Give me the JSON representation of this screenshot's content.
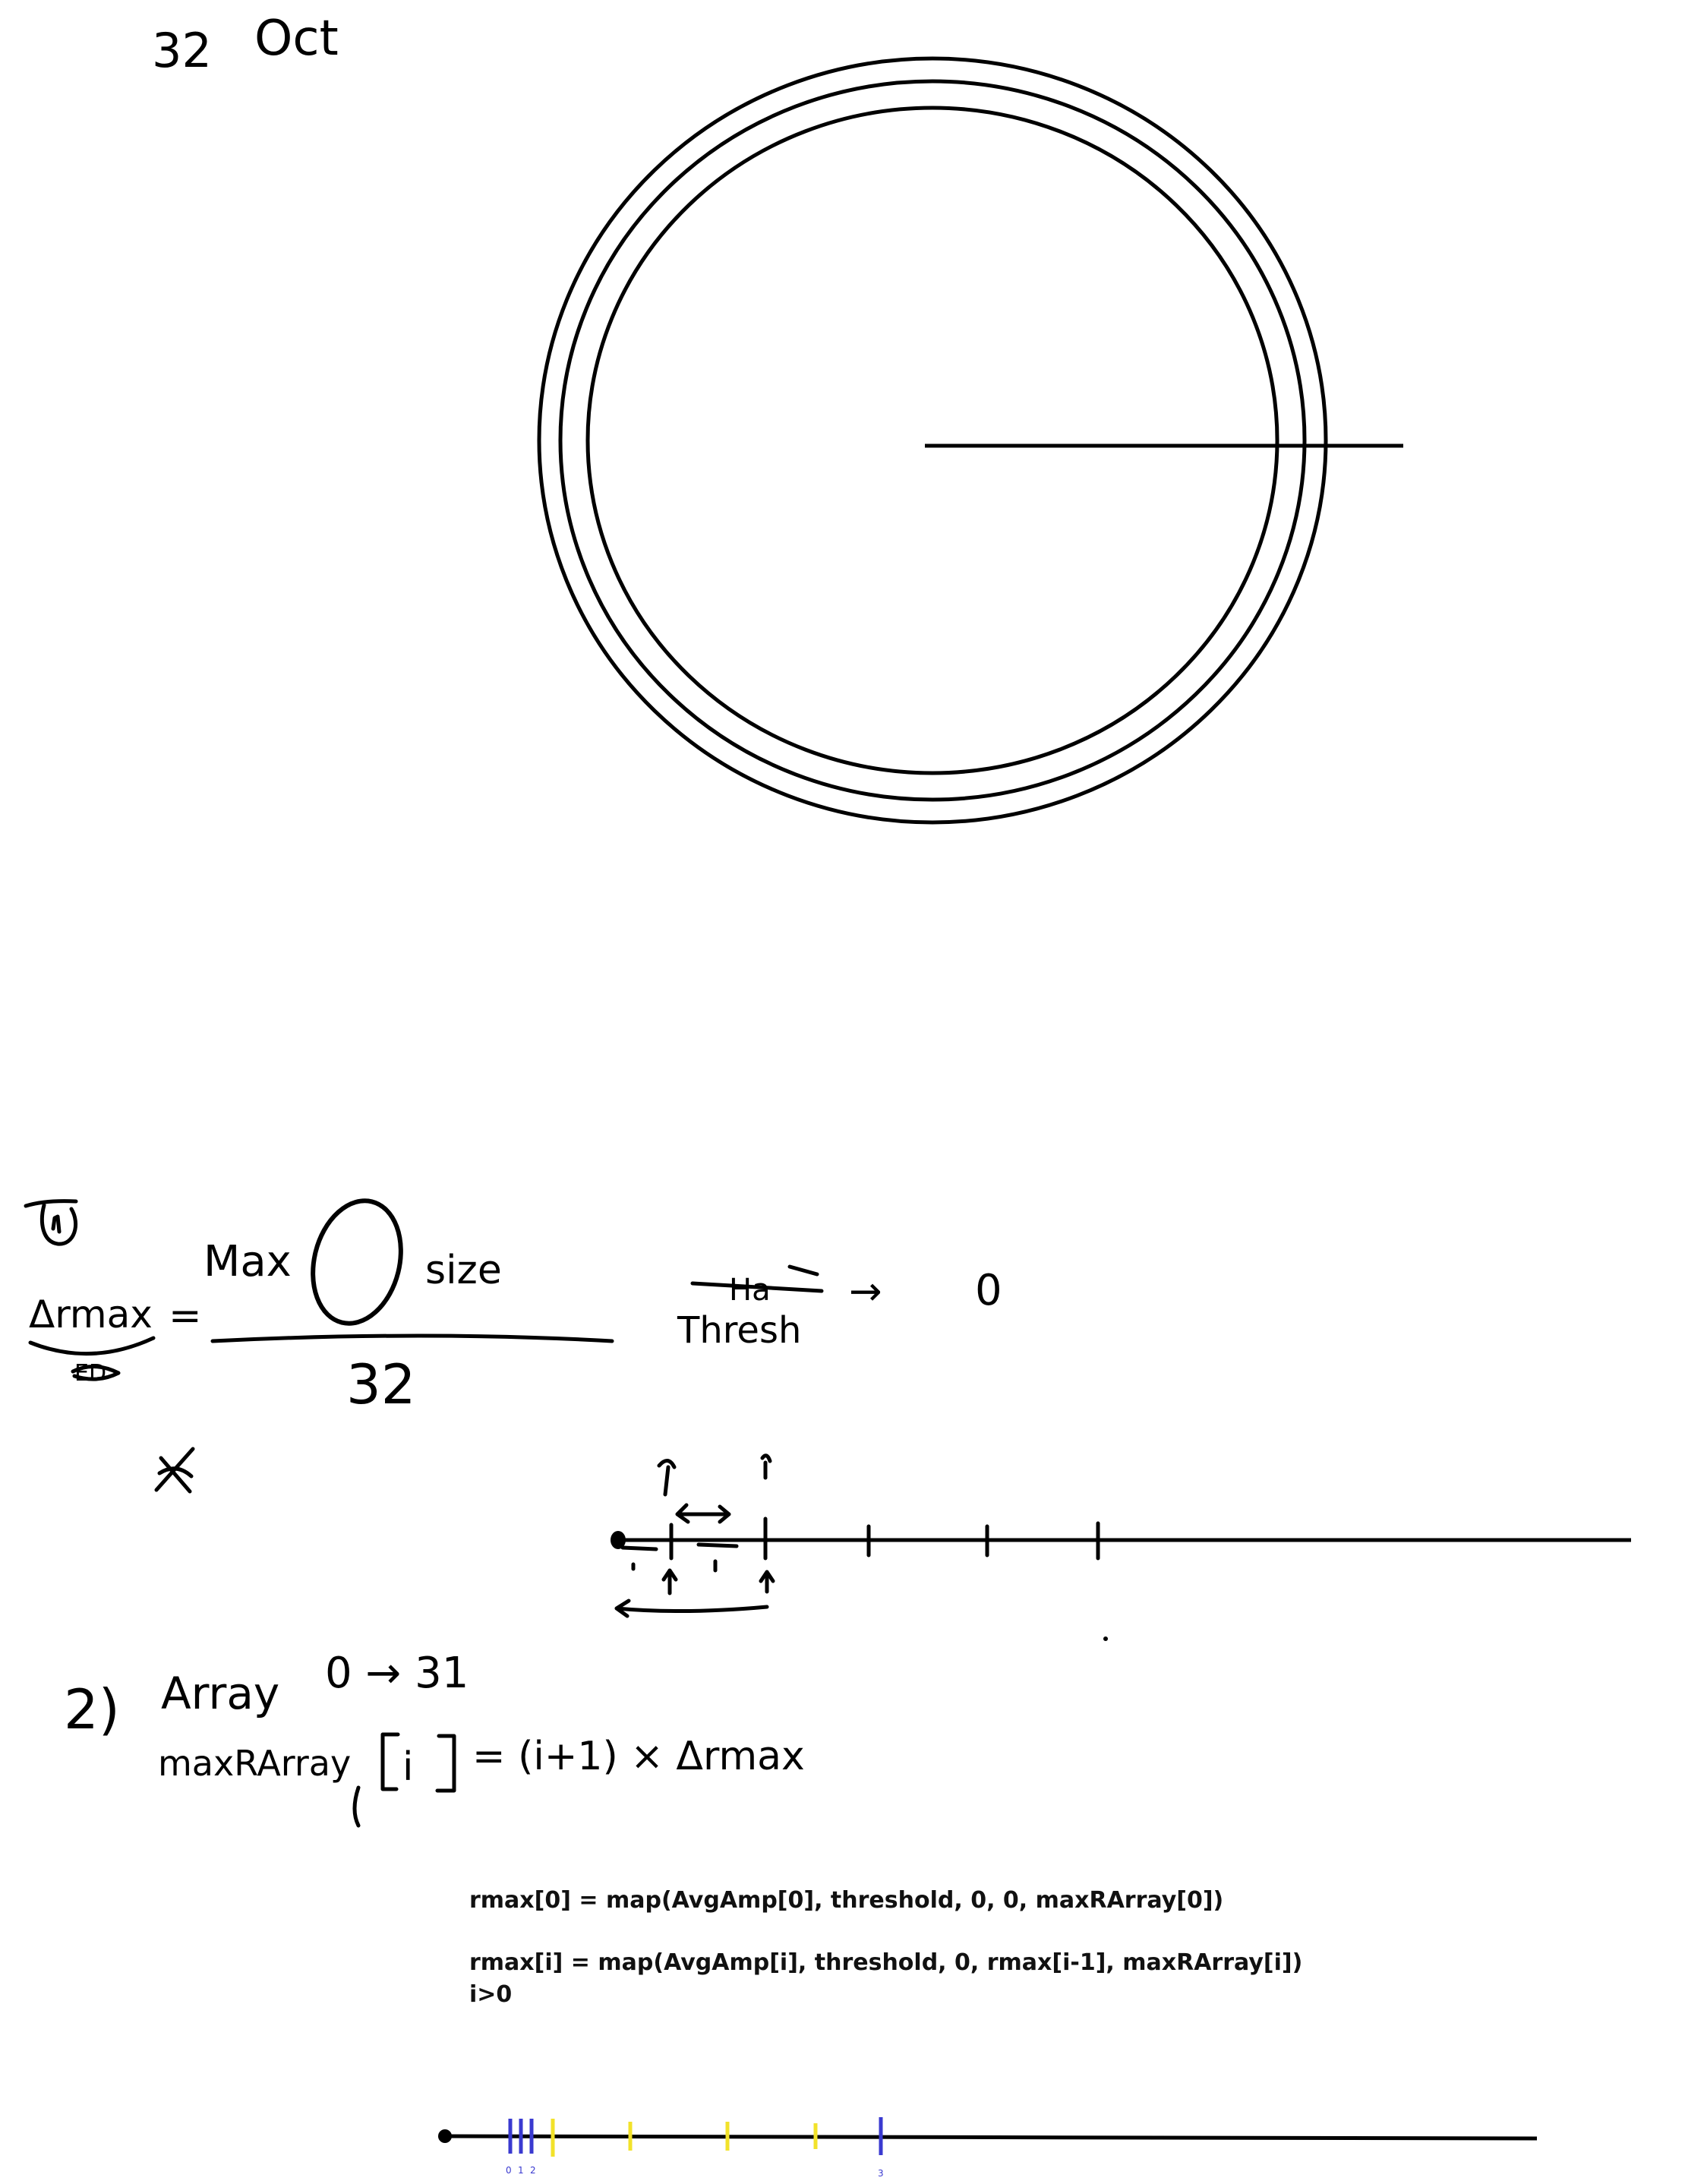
{
  "header": {
    "date_number": "32",
    "date_month": "Oct"
  },
  "section1": {
    "marker": "①",
    "lhs": "Δrmax",
    "lhs_struck": "ED",
    "equals": "=",
    "numerator_word1": "Max",
    "numerator_word2": "size",
    "denominator": "32",
    "thresh_struck": "Ha",
    "thresh": "Thresh",
    "arrow": "→",
    "result": "0"
  },
  "section2": {
    "number": "2)",
    "title": "Array",
    "range": "0 → 31",
    "formula_lhs": "maxRArray",
    "formula_index": "i",
    "formula_rhs": "= (i+1) × Δrmax"
  },
  "formulas": {
    "line1": "rmax[0] = map(AvgAmp[0], threshold, 0, 0, maxRArray[0])",
    "line2": "rmax[i] = map(AvgAmp[i], threshold, 0, rmax[i-1], maxRArray[i])",
    "line3": "i>0"
  },
  "bottom_axis": {
    "blue_labels": [
      "0",
      "1",
      "2",
      "3"
    ],
    "colors": {
      "blue": "#3a3ad0",
      "yellow": "#f2e22a",
      "ink": "#000000"
    }
  }
}
